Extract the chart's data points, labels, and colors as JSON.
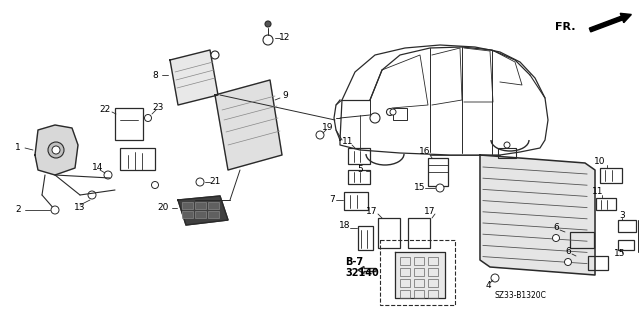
{
  "bg_color": "#ffffff",
  "line_color": "#2a2a2a",
  "text_color": "#000000",
  "diagram_code": "SZ33-B1320C",
  "figsize": [
    6.4,
    3.19
  ],
  "dpi": 100,
  "parts": {
    "fr_text": "FR.",
    "b7_text": "B-7",
    "b7_num": "32140"
  }
}
